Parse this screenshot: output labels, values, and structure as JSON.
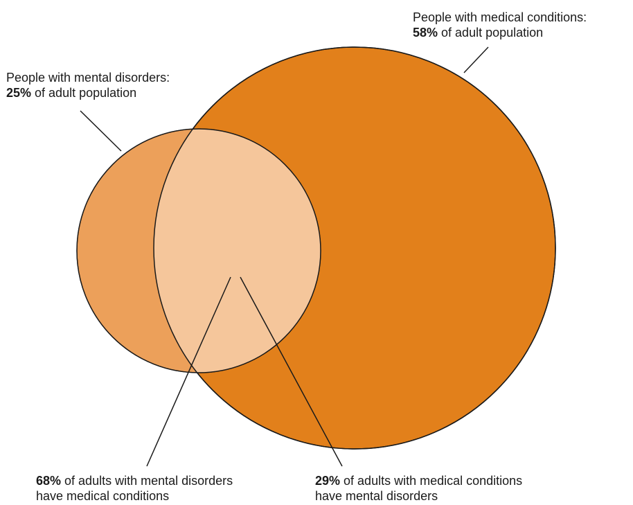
{
  "sets": {
    "medical": {
      "label_line1": "People with medical conditions:",
      "percent": "58%",
      "label_rest": " of adult population",
      "color": "#e2801b"
    },
    "mental": {
      "label_line1": "People with mental disorders:",
      "percent": "25%",
      "label_rest": " of adult population",
      "color": "#eca05a"
    },
    "overlap_color": "#f5c69b"
  },
  "overlap_labels": {
    "mental_with_medical": {
      "percent": "68%",
      "text_line1": " of adults with mental disorders",
      "text_line2": "have medical conditions"
    },
    "medical_with_mental": {
      "percent": "29%",
      "text_line1": " of adults with medical conditions",
      "text_line2": "have mental disorders"
    }
  }
}
